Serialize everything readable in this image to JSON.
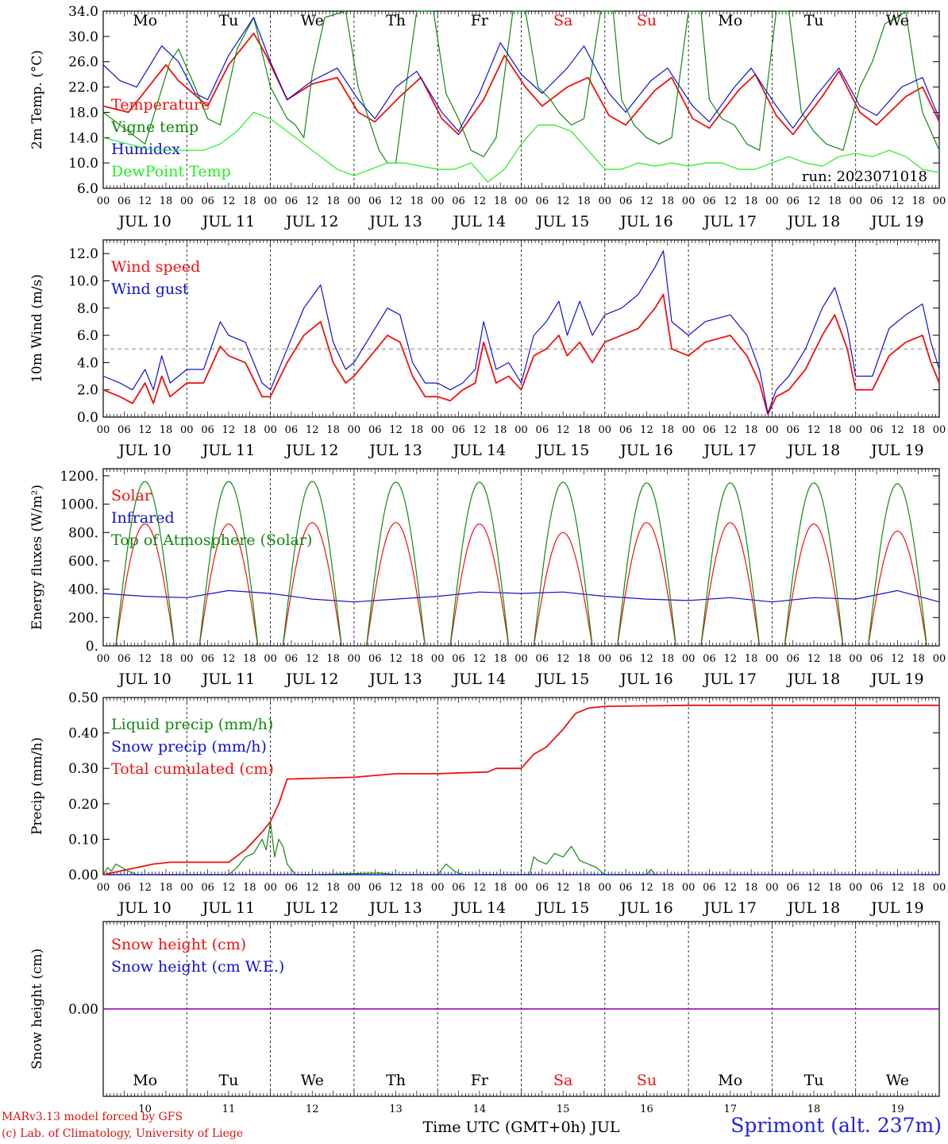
{
  "colors": {
    "red": "#ee1111",
    "darkgreen": "#118811",
    "blue": "#1111cc",
    "lightgreen": "#22ee22",
    "purple": "#9922aa",
    "grid": "#888888"
  },
  "days": {
    "dates": [
      "JUL 10",
      "JUL 11",
      "JUL 12",
      "JUL 13",
      "JUL 14",
      "JUL 15",
      "JUL 16",
      "JUL 17",
      "JUL 18",
      "JUL 19"
    ],
    "weekdays": [
      "Mo",
      "Tu",
      "We",
      "Th",
      "Fr",
      "Sa",
      "Su",
      "Mo",
      "Tu",
      "We"
    ],
    "weekend_flags": [
      false,
      false,
      false,
      false,
      false,
      true,
      true,
      false,
      false,
      false
    ],
    "numbers": [
      "10",
      "11",
      "12",
      "13",
      "14",
      "15",
      "16",
      "17",
      "18",
      "19"
    ],
    "hour_ticks": [
      "00",
      "06",
      "12",
      "18"
    ],
    "end_tick": "00"
  },
  "footer": {
    "credit_line1": "MARv3.13 model forced by GFS",
    "credit_line2": "(c) Lab. of Climatology, University of Liege",
    "station": "Sprimont (alt. 237m)"
  },
  "chart_data": [
    {
      "type": "line",
      "title": "",
      "ylabel": "2m Temp. (°C)",
      "ylim": [
        6.0,
        34.0
      ],
      "yticks": [
        "6.0",
        "10.0",
        "14.0",
        "18.0",
        "22.0",
        "26.0",
        "30.0",
        "34.0"
      ],
      "x_unit": "days since JUL 10 00 UTC",
      "annotation": "run: 2023071018",
      "series": [
        {
          "name": "Temperature",
          "color": "red",
          "x": [
            0,
            0.3,
            0.6,
            0.75,
            0.9,
            1.25,
            1.5,
            1.8,
            1.95,
            2.2,
            2.5,
            2.8,
            3.05,
            3.25,
            3.55,
            3.8,
            4.05,
            4.25,
            4.55,
            4.8,
            5.05,
            5.25,
            5.55,
            5.8,
            6.05,
            6.25,
            6.6,
            6.8,
            7.05,
            7.25,
            7.6,
            7.8,
            8.05,
            8.25,
            8.6,
            8.8,
            9.05,
            9.25,
            9.6,
            9.8,
            10
          ],
          "y": [
            19,
            18,
            23,
            25.5,
            23,
            19,
            25.5,
            30.5,
            27,
            20,
            22.5,
            23.5,
            18,
            16.5,
            20.5,
            23.5,
            17,
            14.5,
            20,
            27,
            22,
            19,
            22,
            23.5,
            17.5,
            16,
            21.5,
            23.5,
            17,
            15.5,
            21.5,
            24,
            17.5,
            14.5,
            20.5,
            24.5,
            18,
            16,
            20.5,
            22,
            16.5
          ]
        },
        {
          "name": "Vigne temp",
          "color": "darkgreen",
          "x": [
            0,
            0.3,
            0.5,
            0.8,
            0.9,
            1.1,
            1.25,
            1.4,
            1.6,
            1.8,
            2.0,
            2.2,
            2.3,
            2.4,
            2.5,
            2.65,
            2.9,
            3.05,
            3.2,
            3.3,
            3.4,
            3.5,
            3.6,
            3.75,
            3.95,
            4.1,
            4.25,
            4.4,
            4.55,
            4.7,
            4.9,
            5.05,
            5.2,
            5.35,
            5.45,
            5.6,
            5.75,
            5.95,
            6.1,
            6.2,
            6.35,
            6.5,
            6.65,
            6.8,
            7.0,
            7.15,
            7.25,
            7.4,
            7.55,
            7.7,
            7.85,
            8.05,
            8.2,
            8.35,
            8.5,
            8.65,
            8.85,
            9.05,
            9.2,
            9.35,
            9.5,
            9.6,
            9.7,
            9.8,
            10
          ],
          "y": [
            18,
            15,
            13,
            26,
            28,
            22,
            17,
            16,
            28,
            33,
            22,
            17,
            16,
            14,
            24,
            33,
            34,
            22,
            16,
            12,
            10,
            10,
            20,
            34,
            34,
            21,
            17,
            12,
            11,
            14,
            34,
            34,
            22,
            20,
            18,
            16,
            17,
            34,
            34,
            20,
            16,
            14,
            13,
            14,
            34,
            34,
            20,
            17,
            16,
            13,
            12,
            34,
            34,
            18,
            15,
            13,
            12,
            22,
            26,
            32,
            33,
            34,
            25,
            18,
            12
          ]
        },
        {
          "name": "Humidex",
          "color": "blue",
          "x": [
            0,
            0.2,
            0.4,
            0.7,
            0.9,
            1.1,
            1.25,
            1.5,
            1.8,
            2.0,
            2.2,
            2.5,
            2.8,
            3.05,
            3.25,
            3.5,
            3.75,
            4.05,
            4.25,
            4.5,
            4.75,
            5.0,
            5.25,
            5.55,
            5.75,
            6.05,
            6.25,
            6.55,
            6.75,
            7.05,
            7.25,
            7.55,
            7.75,
            8.05,
            8.25,
            8.55,
            8.8,
            9.05,
            9.25,
            9.55,
            9.8,
            10
          ],
          "y": [
            25.5,
            23,
            22,
            28.5,
            26,
            21,
            20,
            27,
            33,
            26,
            20,
            23,
            25,
            20,
            17,
            22,
            24.5,
            18,
            15,
            21,
            29,
            24,
            21,
            25,
            28.5,
            21,
            18,
            23,
            25,
            19,
            16.5,
            22,
            25,
            19,
            15.5,
            21,
            25,
            19,
            17.5,
            22,
            23.5,
            17
          ]
        },
        {
          "name": "DewPoint Temp",
          "color": "lightgreen",
          "x": [
            0,
            0.3,
            0.6,
            0.9,
            1.2,
            1.4,
            1.6,
            1.8,
            2.0,
            2.2,
            2.4,
            2.6,
            2.8,
            3.0,
            3.2,
            3.4,
            3.6,
            3.8,
            4.0,
            4.2,
            4.4,
            4.6,
            4.8,
            5.0,
            5.2,
            5.4,
            5.6,
            5.8,
            6.0,
            6.2,
            6.4,
            6.6,
            6.8,
            7.0,
            7.2,
            7.4,
            7.6,
            7.8,
            8.0,
            8.2,
            8.4,
            8.6,
            8.8,
            9.0,
            9.2,
            9.4,
            9.6,
            9.8,
            10
          ],
          "y": [
            14,
            13,
            12,
            12,
            12,
            13,
            15,
            18,
            17,
            15,
            13,
            11,
            9,
            8,
            9,
            10,
            10,
            9.5,
            9,
            9,
            10,
            7,
            9,
            13,
            16,
            16,
            15,
            12,
            9,
            9,
            10,
            9.5,
            10,
            9.5,
            10,
            10,
            9,
            9,
            10,
            11,
            10,
            9.5,
            11,
            11.5,
            11,
            12,
            11,
            9,
            8.5
          ]
        }
      ]
    },
    {
      "type": "line",
      "title": "",
      "ylabel": "10m Wind (m/s)",
      "ylim": [
        0.0,
        13.0
      ],
      "yticks": [
        "0.0",
        "2.0",
        "4.0",
        "6.0",
        "8.0",
        "10.0",
        "12.0"
      ],
      "reference_line": 5.0,
      "x_unit": "days since JUL 10 00 UTC",
      "series": [
        {
          "name": "Wind speed",
          "color": "red",
          "x": [
            0,
            0.2,
            0.35,
            0.5,
            0.6,
            0.7,
            0.8,
            0.9,
            1.0,
            1.2,
            1.4,
            1.5,
            1.7,
            1.9,
            2.0,
            2.2,
            2.4,
            2.6,
            2.75,
            2.9,
            3.0,
            3.2,
            3.4,
            3.55,
            3.7,
            3.85,
            4.0,
            4.15,
            4.3,
            4.45,
            4.55,
            4.7,
            4.85,
            5.0,
            5.15,
            5.3,
            5.45,
            5.55,
            5.7,
            5.85,
            6.0,
            6.2,
            6.4,
            6.6,
            6.7,
            6.8,
            7.0,
            7.2,
            7.5,
            7.7,
            7.85,
            7.95,
            8.05,
            8.2,
            8.4,
            8.6,
            8.75,
            8.9,
            9.0,
            9.2,
            9.4,
            9.6,
            9.8,
            9.9,
            10
          ],
          "y": [
            2,
            1.5,
            1,
            2.5,
            1,
            3,
            1.5,
            2,
            2.5,
            2.5,
            5.2,
            4.5,
            4,
            1.5,
            1.5,
            4,
            6,
            7,
            4,
            2.5,
            3,
            4.5,
            6,
            5.5,
            3,
            1.5,
            1.5,
            1.2,
            2,
            2.5,
            5.5,
            2.5,
            3,
            2,
            4.5,
            5,
            6,
            4.5,
            5.5,
            4,
            5.5,
            6,
            6.5,
            8,
            9,
            5,
            4.5,
            5.5,
            6,
            4.5,
            2.5,
            0.2,
            1.5,
            2,
            3.5,
            6,
            7.5,
            5,
            2,
            2,
            4.5,
            5.5,
            6,
            4,
            2.5
          ]
        },
        {
          "name": "Wind gust",
          "color": "blue",
          "x": [
            0,
            0.2,
            0.35,
            0.5,
            0.6,
            0.7,
            0.8,
            0.9,
            1.0,
            1.2,
            1.4,
            1.5,
            1.7,
            1.9,
            2.0,
            2.2,
            2.4,
            2.6,
            2.75,
            2.9,
            3.0,
            3.2,
            3.4,
            3.55,
            3.7,
            3.85,
            4.0,
            4.15,
            4.3,
            4.45,
            4.55,
            4.7,
            4.85,
            5.0,
            5.15,
            5.3,
            5.45,
            5.55,
            5.7,
            5.85,
            6.0,
            6.2,
            6.4,
            6.6,
            6.7,
            6.8,
            7.0,
            7.2,
            7.5,
            7.7,
            7.85,
            7.95,
            8.05,
            8.2,
            8.4,
            8.6,
            8.75,
            8.9,
            9.0,
            9.2,
            9.4,
            9.6,
            9.8,
            9.9,
            10
          ],
          "y": [
            3,
            2.5,
            2,
            3.5,
            2,
            4.5,
            2.5,
            3,
            3.5,
            3.5,
            7,
            6,
            5.5,
            2.5,
            2,
            5,
            8,
            9.7,
            5.5,
            3.5,
            4,
            6,
            8,
            7.5,
            4,
            2.5,
            2.5,
            2,
            2.5,
            3.5,
            7,
            3.5,
            4,
            2.5,
            6,
            7,
            8.5,
            6,
            8.5,
            6,
            7.5,
            8,
            9,
            11,
            12.2,
            7,
            6,
            7,
            7.5,
            6,
            3.5,
            0.3,
            2,
            3,
            5,
            8,
            9.5,
            6.5,
            3,
            3,
            6.5,
            7.5,
            8.3,
            5.5,
            3.5
          ]
        }
      ]
    },
    {
      "type": "line",
      "title": "",
      "ylabel": "Energy fluxes (W/m²)",
      "ylim": [
        0,
        1250
      ],
      "yticks": [
        "0.",
        "200.",
        "400.",
        "600.",
        "800.",
        "1000.",
        "1200."
      ],
      "x_unit": "days since JUL 10 00 UTC",
      "diurnal_model": {
        "sunrise_fraction": 0.15,
        "sunset_fraction": 0.85
      },
      "series": [
        {
          "name": "Solar",
          "color": "red",
          "daily_peak": [
            860,
            860,
            870,
            870,
            860,
            800,
            870,
            870,
            860,
            810
          ]
        },
        {
          "name": "Infrared",
          "color": "blue",
          "x": [
            0,
            0.5,
            1.0,
            1.5,
            2.0,
            2.5,
            3.0,
            3.5,
            4.0,
            4.5,
            5.0,
            5.5,
            6.0,
            6.5,
            7.0,
            7.5,
            8.0,
            8.5,
            9.0,
            9.5,
            10
          ],
          "y": [
            370,
            350,
            340,
            390,
            370,
            330,
            310,
            330,
            350,
            380,
            370,
            380,
            350,
            330,
            320,
            340,
            310,
            340,
            330,
            390,
            310
          ]
        },
        {
          "name": "Top of Atmosphere (Solar)",
          "color": "darkgreen",
          "daily_peak": [
            1160,
            1160,
            1160,
            1155,
            1155,
            1155,
            1150,
            1150,
            1150,
            1145
          ]
        }
      ]
    },
    {
      "type": "line",
      "title": "",
      "ylabel": "Precip (mm/h)",
      "ylim": [
        0.0,
        0.5
      ],
      "yticks": [
        "0.00",
        "0.10",
        "0.20",
        "0.30",
        "0.40",
        "0.50"
      ],
      "x_unit": "days since JUL 10 00 UTC",
      "series": [
        {
          "name": "Liquid precip (mm/h)",
          "color": "darkgreen",
          "x": [
            0,
            0.05,
            0.1,
            0.15,
            0.3,
            0.4,
            1.5,
            1.6,
            1.7,
            1.8,
            1.9,
            1.95,
            2.0,
            2.05,
            2.1,
            2.15,
            2.2,
            2.3,
            2.5,
            3.3,
            3.5,
            3.6,
            4.0,
            4.1,
            4.15,
            4.2,
            4.3,
            4.5,
            5.1,
            5.15,
            5.2,
            5.3,
            5.4,
            5.5,
            5.6,
            5.65,
            5.7,
            5.8,
            5.9,
            6.0,
            6.5,
            6.55,
            6.6
          ],
          "y": [
            0,
            0.02,
            0.01,
            0.03,
            0.01,
            0,
            0,
            0.02,
            0.05,
            0.06,
            0.1,
            0.07,
            0.15,
            0.05,
            0.1,
            0.08,
            0.03,
            0,
            0,
            0.005,
            0,
            0,
            0,
            0.03,
            0.02,
            0.01,
            0,
            0,
            0,
            0.05,
            0.04,
            0.03,
            0.06,
            0.05,
            0.08,
            0.06,
            0.04,
            0.03,
            0.02,
            0,
            0,
            0.015,
            0
          ]
        },
        {
          "name": "Snow precip (mm/h)",
          "color": "blue",
          "x": [
            0,
            10
          ],
          "y": [
            0,
            0
          ]
        },
        {
          "name": "Total cumulated (cm)",
          "color": "red",
          "x": [
            0,
            0.3,
            0.4,
            0.6,
            0.8,
            1.5,
            1.7,
            1.9,
            2.0,
            2.1,
            2.2,
            3.0,
            3.5,
            4.0,
            4.6,
            4.7,
            5.0,
            5.15,
            5.3,
            5.5,
            5.65,
            5.8,
            6.0,
            7.0,
            10
          ],
          "y": [
            0,
            0.015,
            0.02,
            0.03,
            0.035,
            0.035,
            0.07,
            0.12,
            0.15,
            0.2,
            0.27,
            0.275,
            0.285,
            0.285,
            0.29,
            0.3,
            0.3,
            0.34,
            0.36,
            0.41,
            0.455,
            0.47,
            0.475,
            0.478,
            0.478
          ]
        }
      ]
    },
    {
      "type": "line",
      "title": "",
      "ylabel": "Snow height (cm)",
      "yticks": [
        "0.00"
      ],
      "xlabel": "Time UTC (GMT+0h) JUL",
      "x_unit": "days since JUL 10 00 UTC",
      "series": [
        {
          "name": "Snow height (cm)",
          "color": "red",
          "x": [
            0,
            10
          ],
          "y": [
            0,
            0
          ]
        },
        {
          "name": "Snow height (cm W.E.)",
          "color": "blue",
          "x": [
            0,
            10
          ],
          "y": [
            0,
            0
          ]
        }
      ]
    }
  ]
}
